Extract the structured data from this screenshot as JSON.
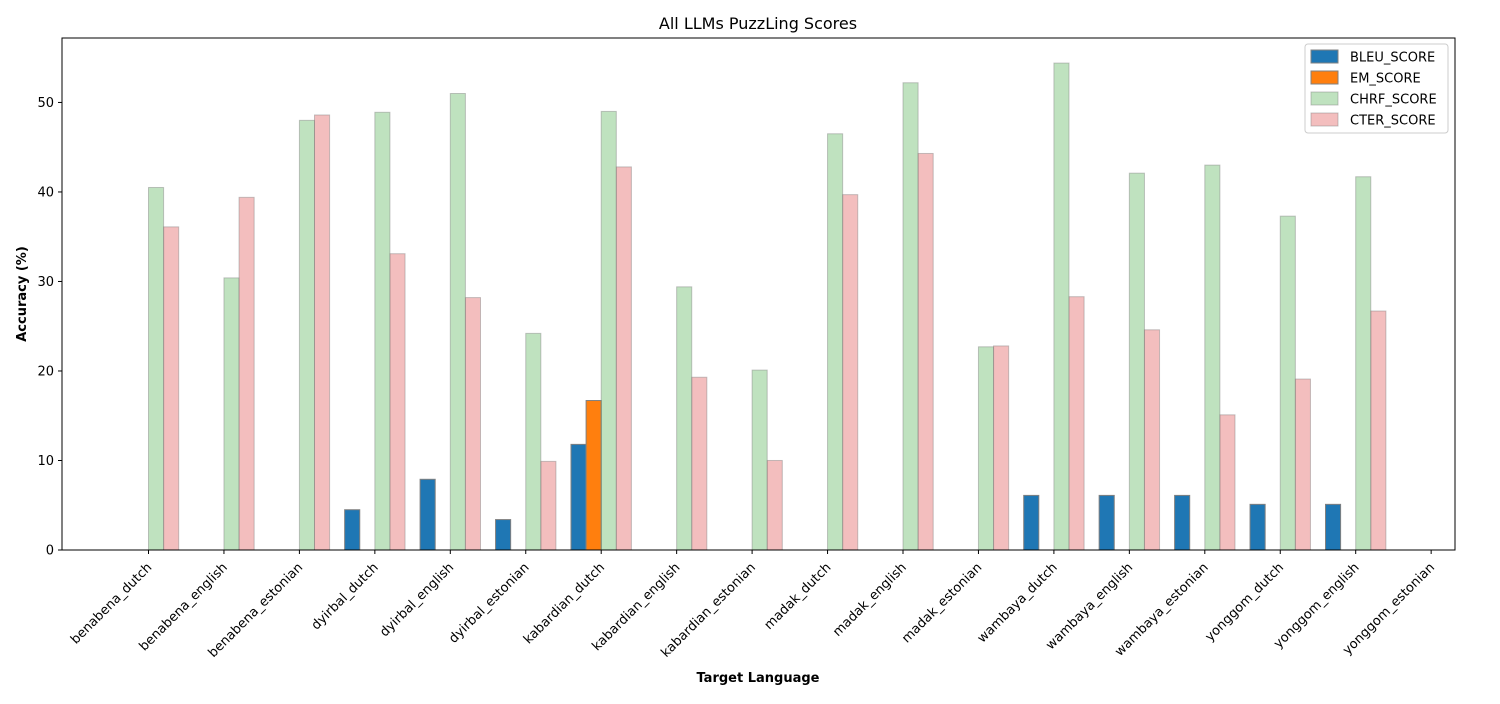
{
  "chart_data": {
    "type": "bar",
    "title": "All LLMs PuzzLing Scores",
    "xlabel": "Target Language",
    "ylabel": "Accuracy (%)",
    "ylim": [
      0,
      57.2
    ],
    "yticks": [
      0,
      10,
      20,
      30,
      40,
      50
    ],
    "grid": false,
    "legend_position": "top-right",
    "categories": [
      "benabena_dutch",
      "benabena_english",
      "benabena_estonian",
      "dyirbal_dutch",
      "dyirbal_english",
      "dyirbal_estonian",
      "kabardian_dutch",
      "kabardian_english",
      "kabardian_estonian",
      "madak_dutch",
      "madak_english",
      "madak_estonian",
      "wambaya_dutch",
      "wambaya_english",
      "wambaya_estonian",
      "yonggom_dutch",
      "yonggom_english",
      "yonggom_estonian"
    ],
    "series": [
      {
        "name": "BLEU_SCORE",
        "color": "#1f77b4",
        "opacity": 1,
        "values": [
          0,
          0,
          0,
          4.5,
          7.9,
          3.4,
          11.8,
          0,
          0,
          0,
          0,
          0,
          6.1,
          6.1,
          6.1,
          5.1,
          5.1,
          0
        ]
      },
      {
        "name": "EM_SCORE",
        "color": "#ff7f0e",
        "opacity": 1,
        "values": [
          0,
          0,
          0,
          0,
          0,
          0,
          16.7,
          0,
          0,
          0,
          0,
          0,
          0,
          0,
          0,
          0,
          0,
          0
        ]
      },
      {
        "name": "CHRF_SCORE",
        "color": "#2ca02c",
        "opacity": 0.3,
        "values": [
          40.5,
          30.4,
          48.0,
          48.9,
          51.0,
          24.2,
          49.0,
          29.4,
          20.1,
          46.5,
          52.2,
          22.7,
          54.4,
          42.1,
          43.0,
          37.3,
          41.7,
          0
        ]
      },
      {
        "name": "CTER_SCORE",
        "color": "#d62728",
        "opacity": 0.3,
        "values": [
          36.1,
          39.4,
          48.6,
          33.1,
          28.2,
          9.9,
          42.8,
          19.3,
          10.0,
          39.7,
          44.3,
          22.8,
          28.3,
          24.6,
          15.1,
          19.1,
          26.7,
          0
        ]
      }
    ]
  }
}
